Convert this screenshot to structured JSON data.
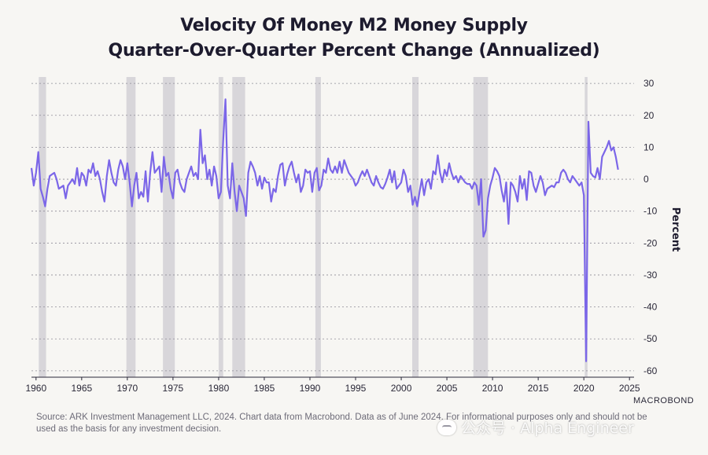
{
  "chart_data": {
    "type": "line",
    "title": "Velocity Of Money M2 Money Supply",
    "subtitle": "Quarter-Over-Quarter Percent Change (Annualized)",
    "ylabel": "Percent",
    "xlabel": "",
    "xlim": [
      1959.5,
      2025.5
    ],
    "ylim": [
      -62,
      32
    ],
    "x_ticks": [
      1960,
      1965,
      1970,
      1975,
      1980,
      1985,
      1990,
      1995,
      2000,
      2005,
      2010,
      2015,
      2020,
      2025
    ],
    "y_ticks": [
      30,
      20,
      10,
      0,
      -10,
      -20,
      -30,
      -40,
      -50,
      -60
    ],
    "grid": true,
    "y_axis_side": "right",
    "legend": "none",
    "line_color": "#7b66e8",
    "recession_color": "#d4d3d7",
    "recessions": [
      [
        1960.3,
        1961.1
      ],
      [
        1969.9,
        1970.9
      ],
      [
        1973.9,
        1975.2
      ],
      [
        1980.0,
        1980.5
      ],
      [
        1981.5,
        1982.9
      ],
      [
        1990.6,
        1991.2
      ],
      [
        2001.2,
        2001.9
      ],
      [
        2007.9,
        2009.5
      ],
      [
        2020.1,
        2020.4
      ]
    ],
    "series": [
      {
        "points": [
          [
            1959.5,
            3.5
          ],
          [
            1959.75,
            -2
          ],
          [
            1960.0,
            2
          ],
          [
            1960.25,
            8.5
          ],
          [
            1960.5,
            -3
          ],
          [
            1960.75,
            -5.5
          ],
          [
            1961.0,
            -8.5
          ],
          [
            1961.25,
            -3
          ],
          [
            1961.5,
            1
          ],
          [
            1961.75,
            1.5
          ],
          [
            1962.0,
            2
          ],
          [
            1962.25,
            0
          ],
          [
            1962.5,
            -3
          ],
          [
            1963.0,
            -2
          ],
          [
            1963.25,
            -6
          ],
          [
            1963.5,
            -2
          ],
          [
            1963.75,
            -1
          ],
          [
            1964.0,
            0
          ],
          [
            1964.25,
            -1.5
          ],
          [
            1964.5,
            3.5
          ],
          [
            1964.75,
            -2
          ],
          [
            1965.0,
            2
          ],
          [
            1965.25,
            1
          ],
          [
            1965.5,
            -2
          ],
          [
            1965.75,
            3
          ],
          [
            1966.0,
            2
          ],
          [
            1966.25,
            5
          ],
          [
            1966.5,
            1
          ],
          [
            1966.75,
            2.5
          ],
          [
            1967.0,
            0
          ],
          [
            1967.25,
            -4
          ],
          [
            1967.5,
            -7
          ],
          [
            1967.75,
            1
          ],
          [
            1968.0,
            6
          ],
          [
            1968.25,
            2
          ],
          [
            1968.5,
            -1
          ],
          [
            1968.75,
            -2
          ],
          [
            1969.0,
            3
          ],
          [
            1969.25,
            6
          ],
          [
            1969.5,
            4
          ],
          [
            1969.75,
            0
          ],
          [
            1970.0,
            5
          ],
          [
            1970.25,
            -1
          ],
          [
            1970.5,
            -8.5
          ],
          [
            1970.75,
            -2
          ],
          [
            1971.0,
            2
          ],
          [
            1971.25,
            -6
          ],
          [
            1971.5,
            -4
          ],
          [
            1971.75,
            -5.5
          ],
          [
            1972.0,
            2.5
          ],
          [
            1972.25,
            -7
          ],
          [
            1972.5,
            2
          ],
          [
            1972.75,
            8.5
          ],
          [
            1973.0,
            2
          ],
          [
            1973.25,
            3
          ],
          [
            1973.5,
            4
          ],
          [
            1973.75,
            -4
          ],
          [
            1974.0,
            7
          ],
          [
            1974.25,
            1
          ],
          [
            1974.5,
            2
          ],
          [
            1974.75,
            -3
          ],
          [
            1975.0,
            -6
          ],
          [
            1975.25,
            2
          ],
          [
            1975.5,
            3
          ],
          [
            1975.75,
            -1
          ],
          [
            1976.0,
            -3
          ],
          [
            1976.25,
            -4
          ],
          [
            1976.5,
            0
          ],
          [
            1976.75,
            2
          ],
          [
            1977.0,
            4
          ],
          [
            1977.25,
            1
          ],
          [
            1977.5,
            2
          ],
          [
            1977.75,
            0
          ],
          [
            1978.0,
            15.5
          ],
          [
            1978.25,
            5
          ],
          [
            1978.5,
            7.5
          ],
          [
            1978.75,
            0
          ],
          [
            1979.0,
            3
          ],
          [
            1979.25,
            -2
          ],
          [
            1979.5,
            4
          ],
          [
            1979.75,
            1
          ],
          [
            1980.0,
            -6
          ],
          [
            1980.25,
            -4
          ],
          [
            1980.5,
            12
          ],
          [
            1980.75,
            25
          ],
          [
            1981.0,
            -2
          ],
          [
            1981.25,
            -6
          ],
          [
            1981.5,
            5
          ],
          [
            1981.75,
            -4
          ],
          [
            1982.0,
            -10
          ],
          [
            1982.25,
            -2
          ],
          [
            1982.5,
            -4
          ],
          [
            1982.75,
            -6
          ],
          [
            1983.0,
            -11.5
          ],
          [
            1983.25,
            2
          ],
          [
            1983.5,
            5.5
          ],
          [
            1983.75,
            4
          ],
          [
            1984.0,
            2
          ],
          [
            1984.25,
            -2
          ],
          [
            1984.5,
            1
          ],
          [
            1984.75,
            -3
          ],
          [
            1985.0,
            0.5
          ],
          [
            1985.25,
            -1
          ],
          [
            1985.5,
            -1
          ],
          [
            1985.75,
            -7
          ],
          [
            1986.0,
            -3
          ],
          [
            1986.25,
            -4
          ],
          [
            1986.5,
            1
          ],
          [
            1986.75,
            4.5
          ],
          [
            1987.0,
            5
          ],
          [
            1987.25,
            -2
          ],
          [
            1987.5,
            1.5
          ],
          [
            1987.75,
            4
          ],
          [
            1988.0,
            5.5
          ],
          [
            1988.25,
            2
          ],
          [
            1988.5,
            -1
          ],
          [
            1988.75,
            1.5
          ],
          [
            1989.0,
            -4
          ],
          [
            1989.25,
            -2
          ],
          [
            1989.5,
            3
          ],
          [
            1989.75,
            2
          ],
          [
            1990.0,
            2.5
          ],
          [
            1990.25,
            -4
          ],
          [
            1990.5,
            2
          ],
          [
            1990.75,
            3.5
          ],
          [
            1991.0,
            -3.5
          ],
          [
            1991.25,
            -2
          ],
          [
            1991.5,
            3
          ],
          [
            1991.75,
            2
          ],
          [
            1992.0,
            6.5
          ],
          [
            1992.25,
            3
          ],
          [
            1992.5,
            2
          ],
          [
            1992.75,
            4
          ],
          [
            1993.0,
            2
          ],
          [
            1993.25,
            5.5
          ],
          [
            1993.5,
            2
          ],
          [
            1993.75,
            6
          ],
          [
            1994.0,
            4
          ],
          [
            1994.25,
            2
          ],
          [
            1994.5,
            1
          ],
          [
            1994.75,
            0
          ],
          [
            1995.0,
            -2
          ],
          [
            1995.25,
            -1
          ],
          [
            1995.5,
            1
          ],
          [
            1995.75,
            2.5
          ],
          [
            1996.0,
            1
          ],
          [
            1996.25,
            3
          ],
          [
            1996.5,
            1
          ],
          [
            1996.75,
            -1
          ],
          [
            1997.0,
            -2
          ],
          [
            1997.25,
            1
          ],
          [
            1997.5,
            -1
          ],
          [
            1997.75,
            -2.5
          ],
          [
            1998.0,
            -3
          ],
          [
            1998.25,
            -1.5
          ],
          [
            1998.5,
            0.5
          ],
          [
            1998.75,
            3
          ],
          [
            1999.0,
            -1
          ],
          [
            1999.25,
            2.5
          ],
          [
            1999.5,
            -3
          ],
          [
            1999.75,
            -2
          ],
          [
            2000.0,
            -1
          ],
          [
            2000.25,
            3
          ],
          [
            2000.5,
            1
          ],
          [
            2000.75,
            -4
          ],
          [
            2001.0,
            -2
          ],
          [
            2001.25,
            -8
          ],
          [
            2001.5,
            -5.5
          ],
          [
            2001.75,
            -8.5
          ],
          [
            2002.0,
            -4
          ],
          [
            2002.25,
            0
          ],
          [
            2002.5,
            -5
          ],
          [
            2002.75,
            -1
          ],
          [
            2003.0,
            0
          ],
          [
            2003.25,
            -3
          ],
          [
            2003.5,
            2.5
          ],
          [
            2003.75,
            1.5
          ],
          [
            2004.0,
            7.5
          ],
          [
            2004.25,
            2
          ],
          [
            2004.5,
            -1
          ],
          [
            2004.75,
            3
          ],
          [
            2005.0,
            1
          ],
          [
            2005.25,
            5
          ],
          [
            2005.5,
            2
          ],
          [
            2005.75,
            0
          ],
          [
            2006.0,
            1
          ],
          [
            2006.25,
            -1
          ],
          [
            2006.5,
            1
          ],
          [
            2006.75,
            0
          ],
          [
            2007.0,
            -1
          ],
          [
            2007.25,
            -1.5
          ],
          [
            2007.5,
            -1.5
          ],
          [
            2007.75,
            -3
          ],
          [
            2008.0,
            -1
          ],
          [
            2008.25,
            -2
          ],
          [
            2008.5,
            -8
          ],
          [
            2008.75,
            0
          ],
          [
            2009.0,
            -18
          ],
          [
            2009.25,
            -16
          ],
          [
            2009.5,
            -6
          ],
          [
            2009.75,
            -2
          ],
          [
            2010.0,
            0.5
          ],
          [
            2010.25,
            3.5
          ],
          [
            2010.5,
            2.5
          ],
          [
            2010.75,
            1
          ],
          [
            2011.0,
            -3.5
          ],
          [
            2011.25,
            -7
          ],
          [
            2011.5,
            -1
          ],
          [
            2011.75,
            -14
          ],
          [
            2012.0,
            -1
          ],
          [
            2012.25,
            -2
          ],
          [
            2012.5,
            -4
          ],
          [
            2012.75,
            -7
          ],
          [
            2013.0,
            1
          ],
          [
            2013.25,
            -3
          ],
          [
            2013.5,
            0
          ],
          [
            2013.75,
            -6.5
          ],
          [
            2014.0,
            2.5
          ],
          [
            2014.25,
            2
          ],
          [
            2014.5,
            -2
          ],
          [
            2014.75,
            -4
          ],
          [
            2015.0,
            -1.5
          ],
          [
            2015.25,
            1
          ],
          [
            2015.5,
            -1
          ],
          [
            2015.75,
            -5
          ],
          [
            2016.0,
            -3
          ],
          [
            2016.25,
            -2.5
          ],
          [
            2016.5,
            -2
          ],
          [
            2016.75,
            -2.5
          ],
          [
            2017.0,
            -1
          ],
          [
            2017.25,
            -1
          ],
          [
            2017.5,
            2
          ],
          [
            2017.75,
            3
          ],
          [
            2018.0,
            2
          ],
          [
            2018.25,
            0
          ],
          [
            2018.5,
            -1
          ],
          [
            2018.75,
            1
          ],
          [
            2019.0,
            0
          ],
          [
            2019.25,
            -1
          ],
          [
            2019.5,
            -2
          ],
          [
            2019.75,
            -1
          ],
          [
            2020.0,
            -5
          ],
          [
            2020.25,
            -57
          ],
          [
            2020.5,
            18
          ],
          [
            2020.75,
            2
          ],
          [
            2021.0,
            1
          ],
          [
            2021.25,
            0.5
          ],
          [
            2021.5,
            3.5
          ],
          [
            2021.75,
            0
          ],
          [
            2022.0,
            7
          ],
          [
            2022.25,
            8.5
          ],
          [
            2022.5,
            10
          ],
          [
            2022.75,
            12
          ],
          [
            2023.0,
            9
          ],
          [
            2023.25,
            10
          ],
          [
            2023.5,
            7
          ],
          [
            2023.75,
            3
          ]
        ]
      }
    ]
  },
  "footnote": "Source: ARK Investment Management LLC, 2024. Chart data from Macrobond. Data as of June 2024. For informational purposes only and should not be used as the basis for any investment decision.",
  "brand": "MACROBOND",
  "watermark": "公众号 · Alpha Engineer"
}
